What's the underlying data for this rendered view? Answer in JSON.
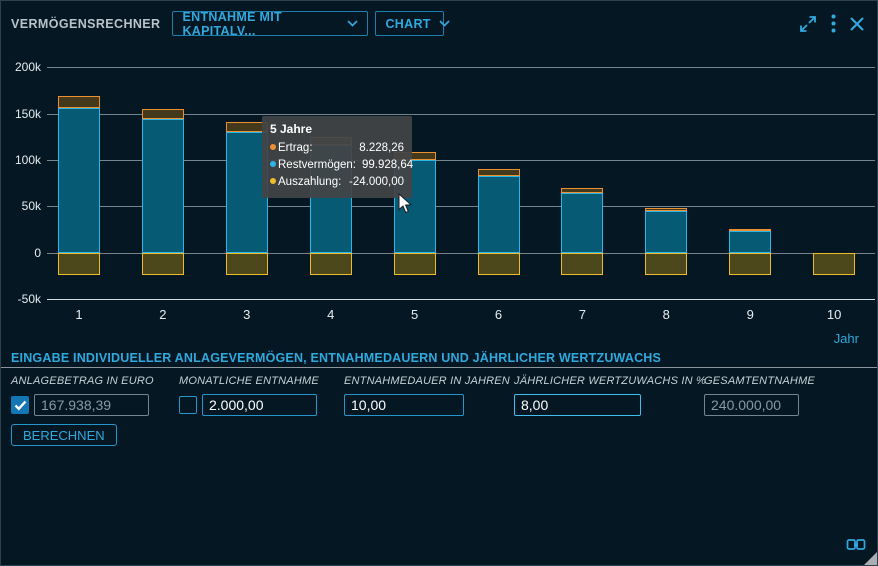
{
  "header": {
    "title": "VERMÖGENSRECHNER",
    "mode_select": "ENTNAHME MIT KAPITALV...",
    "chart_select": "CHART"
  },
  "chart": {
    "xlabel": "Jahr",
    "tooltip": {
      "title": "5 Jahre",
      "rows": [
        {
          "label": "Ertrag:",
          "value": "8.228,26",
          "color": "#ed9030"
        },
        {
          "label": "Restvermögen:",
          "value": "99.928,64",
          "color": "#2db6e8"
        },
        {
          "label": "Auszahlung:",
          "value": "-24.000,00",
          "color": "#f0bc2a"
        }
      ]
    }
  },
  "chart_data": {
    "type": "bar",
    "stacked": true,
    "categories": [
      "1",
      "2",
      "3",
      "4",
      "5",
      "6",
      "7",
      "8",
      "9",
      "10"
    ],
    "series": [
      {
        "name": "Ertrag",
        "color": "#ed9030",
        "fill": "#45391c",
        "values": [
          12407.21,
          11479.79,
          10478.17,
          9396.43,
          8228.26,
          6966.39,
          5603.7,
          4132.0,
          2542.56,
          825.96
        ]
      },
      {
        "name": "Restvermögen",
        "color": "#2db6e8",
        "fill": "#075a74",
        "values": [
          156345.6,
          143825.39,
          130303.56,
          115700.38,
          99928.64,
          82894.52,
          64498.22,
          44630.22,
          23172.78,
          0
        ]
      },
      {
        "name": "Auszahlung",
        "color": "#f0bc2a",
        "fill": "#4d481b",
        "values": [
          -24000,
          -24000,
          -24000,
          -24000,
          -24000,
          -24000,
          -24000,
          -24000,
          -24000,
          -24000
        ]
      }
    ],
    "title": "",
    "xlabel": "Jahr",
    "ylabel": "",
    "ylim": [
      -50000,
      200000
    ],
    "yticks": [
      {
        "value": 200000,
        "label": "200k"
      },
      {
        "value": 150000,
        "label": "150k"
      },
      {
        "value": 100000,
        "label": "100k"
      },
      {
        "value": 50000,
        "label": "50k"
      },
      {
        "value": 0,
        "label": "0"
      },
      {
        "value": -50000,
        "label": "-50k"
      }
    ],
    "grid": true,
    "legend_position": "none"
  },
  "form": {
    "section_title": "EINGABE INDIVIDUELLER ANLAGEVERMÖGEN, ENTNAHMEDAUERN UND JÄHRLICHER WERTZUWACHS",
    "fields": [
      {
        "label": "ANLAGEBETRAG IN EURO",
        "value": "167.938,39",
        "has_checkbox": true,
        "checked": true,
        "disabled": true,
        "focused": false
      },
      {
        "label": "MONATLICHE ENTNAHME",
        "value": "2.000,00",
        "has_checkbox": true,
        "checked": false,
        "disabled": false,
        "focused": false
      },
      {
        "label": "ENTNAHMEDAUER IN JAHREN",
        "value": "10,00",
        "has_checkbox": false,
        "checked": false,
        "disabled": false,
        "focused": false
      },
      {
        "label": "JÄHRLICHER WERTZUWACHS IN %",
        "value": "8,00",
        "has_checkbox": false,
        "checked": false,
        "disabled": false,
        "focused": true
      },
      {
        "label": "GESAMTENTNAHME",
        "value": "240.000,00",
        "has_checkbox": false,
        "checked": false,
        "disabled": true,
        "focused": false
      }
    ],
    "calculate_button": "BERECHNEN"
  },
  "colors": {
    "accent": "#2fa9de",
    "background": "#051722",
    "gridline": "#76848d",
    "checked_checkbox": "#1477b4"
  }
}
